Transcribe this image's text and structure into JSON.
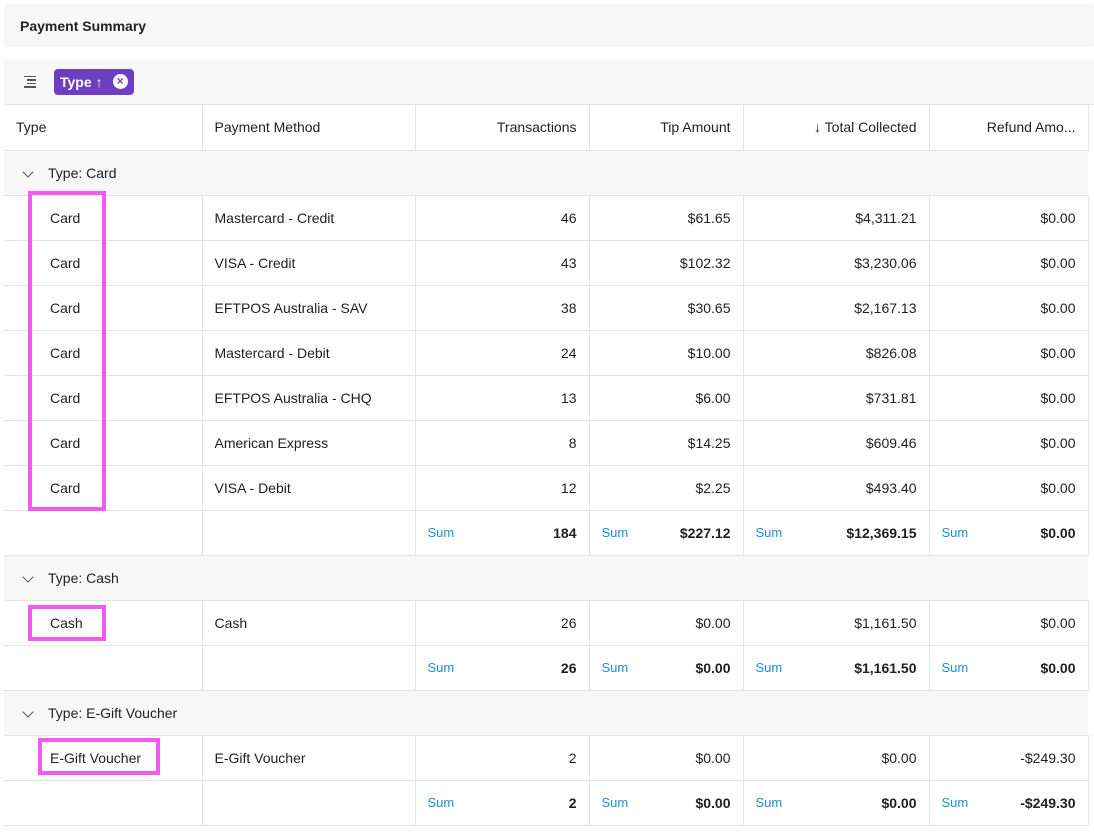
{
  "title": "Payment Summary",
  "toolbar": {
    "sort_chip_label": "Type",
    "sort_arrow": "↑",
    "close_glyph": "×"
  },
  "columns": [
    "Type",
    "Payment Method",
    "Transactions",
    "Tip Amount",
    "↓ Total Collected",
    "Refund Amo..."
  ],
  "sum_label": "Sum",
  "groups": [
    {
      "label": "Type: Card",
      "rows": [
        {
          "type": "Card",
          "method": "Mastercard - Credit",
          "transactions": "46",
          "tip": "$61.65",
          "total": "$4,311.21",
          "refund": "$0.00"
        },
        {
          "type": "Card",
          "method": "VISA - Credit",
          "transactions": "43",
          "tip": "$102.32",
          "total": "$3,230.06",
          "refund": "$0.00"
        },
        {
          "type": "Card",
          "method": "EFTPOS Australia - SAV",
          "transactions": "38",
          "tip": "$30.65",
          "total": "$2,167.13",
          "refund": "$0.00"
        },
        {
          "type": "Card",
          "method": "Mastercard - Debit",
          "transactions": "24",
          "tip": "$10.00",
          "total": "$826.08",
          "refund": "$0.00"
        },
        {
          "type": "Card",
          "method": "EFTPOS Australia - CHQ",
          "transactions": "13",
          "tip": "$6.00",
          "total": "$731.81",
          "refund": "$0.00"
        },
        {
          "type": "Card",
          "method": "American Express",
          "transactions": "8",
          "tip": "$14.25",
          "total": "$609.46",
          "refund": "$0.00"
        },
        {
          "type": "Card",
          "method": "VISA - Debit",
          "transactions": "12",
          "tip": "$2.25",
          "total": "$493.40",
          "refund": "$0.00"
        }
      ],
      "sum": {
        "transactions": "184",
        "tip": "$227.12",
        "total": "$12,369.15",
        "refund": "$0.00"
      }
    },
    {
      "label": "Type: Cash",
      "rows": [
        {
          "type": "Cash",
          "method": "Cash",
          "transactions": "26",
          "tip": "$0.00",
          "total": "$1,161.50",
          "refund": "$0.00"
        }
      ],
      "sum": {
        "transactions": "26",
        "tip": "$0.00",
        "total": "$1,161.50",
        "refund": "$0.00"
      }
    },
    {
      "label": "Type: E-Gift Voucher",
      "rows": [
        {
          "type": "E-Gift Voucher",
          "method": "E-Gift Voucher",
          "transactions": "2",
          "tip": "$0.00",
          "total": "$0.00",
          "refund": "-$249.30"
        }
      ],
      "sum": {
        "transactions": "2",
        "tip": "$0.00",
        "total": "$0.00",
        "refund": "-$249.30"
      }
    }
  ],
  "colors": {
    "chip": "#6d3fc0",
    "highlight": "#f45af0",
    "sum_label": "#1e8fd6"
  }
}
